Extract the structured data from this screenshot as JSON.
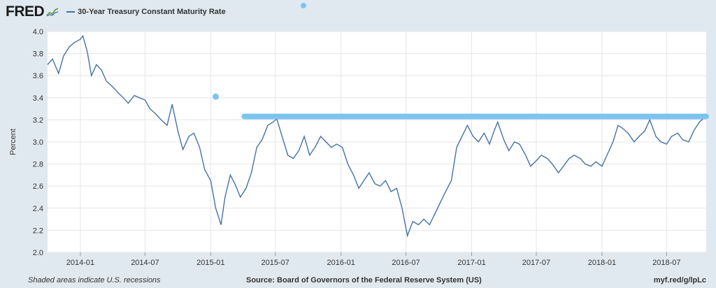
{
  "header": {
    "logo_text": "FRED",
    "logo_icon": "trend-line-icon",
    "legend_label": "30-Year Treasury Constant Maturity Rate"
  },
  "footer": {
    "recessions_note": "Shaded areas indicate U.S. recessions",
    "source": "Source: Board of Governors of the Federal Reserve System (US)",
    "link": "myf.red/g/lpLc"
  },
  "colors": {
    "series": "#4572a7",
    "annotation": "#7cc4f0",
    "background": "#e1e9f0",
    "plot": "#ffffff"
  },
  "chart_data": {
    "type": "line",
    "title": "",
    "ylabel": "Percent",
    "xlabel": "",
    "ylim": [
      2.0,
      4.0
    ],
    "yticks": [
      "2.0",
      "2.2",
      "2.4",
      "2.6",
      "2.8",
      "3.0",
      "3.2",
      "3.4",
      "3.6",
      "3.8",
      "4.0"
    ],
    "xlim": [
      "2013-10-01",
      "2018-10-20"
    ],
    "xticks": [
      {
        "date": "2014-01-01",
        "label": "2014-01"
      },
      {
        "date": "2014-07-01",
        "label": "2014-07"
      },
      {
        "date": "2015-01-01",
        "label": "2015-01"
      },
      {
        "date": "2015-07-01",
        "label": "2015-07"
      },
      {
        "date": "2016-01-01",
        "label": "2016-01"
      },
      {
        "date": "2016-07-01",
        "label": "2016-07"
      },
      {
        "date": "2017-01-01",
        "label": "2017-01"
      },
      {
        "date": "2017-07-01",
        "label": "2017-07"
      },
      {
        "date": "2018-01-01",
        "label": "2018-01"
      },
      {
        "date": "2018-07-01",
        "label": "2018-07"
      }
    ],
    "grid": true,
    "series": [
      {
        "name": "30-Year Treasury Constant Maturity Rate",
        "points": [
          [
            "2013-10-01",
            3.7
          ],
          [
            "2013-10-15",
            3.75
          ],
          [
            "2013-11-01",
            3.62
          ],
          [
            "2013-11-15",
            3.78
          ],
          [
            "2013-12-01",
            3.86
          ],
          [
            "2013-12-15",
            3.9
          ],
          [
            "2014-01-01",
            3.93
          ],
          [
            "2014-01-08",
            3.96
          ],
          [
            "2014-01-20",
            3.82
          ],
          [
            "2014-02-01",
            3.6
          ],
          [
            "2014-02-15",
            3.7
          ],
          [
            "2014-03-01",
            3.65
          ],
          [
            "2014-03-15",
            3.55
          ],
          [
            "2014-04-01",
            3.5
          ],
          [
            "2014-04-15",
            3.45
          ],
          [
            "2014-05-01",
            3.4
          ],
          [
            "2014-05-15",
            3.35
          ],
          [
            "2014-06-01",
            3.42
          ],
          [
            "2014-06-15",
            3.4
          ],
          [
            "2014-07-01",
            3.38
          ],
          [
            "2014-07-15",
            3.3
          ],
          [
            "2014-08-01",
            3.25
          ],
          [
            "2014-08-15",
            3.2
          ],
          [
            "2014-09-01",
            3.15
          ],
          [
            "2014-09-15",
            3.34
          ],
          [
            "2014-10-01",
            3.1
          ],
          [
            "2014-10-15",
            2.93
          ],
          [
            "2014-11-01",
            3.05
          ],
          [
            "2014-11-15",
            3.08
          ],
          [
            "2014-12-01",
            2.95
          ],
          [
            "2014-12-15",
            2.75
          ],
          [
            "2015-01-01",
            2.65
          ],
          [
            "2015-01-15",
            2.4
          ],
          [
            "2015-01-30",
            2.25
          ],
          [
            "2015-02-10",
            2.5
          ],
          [
            "2015-02-25",
            2.7
          ],
          [
            "2015-03-10",
            2.62
          ],
          [
            "2015-03-25",
            2.5
          ],
          [
            "2015-04-10",
            2.58
          ],
          [
            "2015-04-25",
            2.72
          ],
          [
            "2015-05-10",
            2.95
          ],
          [
            "2015-05-25",
            3.02
          ],
          [
            "2015-06-10",
            3.15
          ],
          [
            "2015-06-25",
            3.18
          ],
          [
            "2015-07-05",
            3.21
          ],
          [
            "2015-07-20",
            3.05
          ],
          [
            "2015-08-05",
            2.88
          ],
          [
            "2015-08-20",
            2.85
          ],
          [
            "2015-09-05",
            2.92
          ],
          [
            "2015-09-20",
            3.05
          ],
          [
            "2015-10-05",
            2.88
          ],
          [
            "2015-10-20",
            2.95
          ],
          [
            "2015-11-05",
            3.05
          ],
          [
            "2015-11-20",
            3.0
          ],
          [
            "2015-12-05",
            2.95
          ],
          [
            "2015-12-20",
            2.98
          ],
          [
            "2016-01-05",
            2.95
          ],
          [
            "2016-01-20",
            2.8
          ],
          [
            "2016-02-05",
            2.7
          ],
          [
            "2016-02-20",
            2.58
          ],
          [
            "2016-03-05",
            2.65
          ],
          [
            "2016-03-20",
            2.72
          ],
          [
            "2016-04-05",
            2.62
          ],
          [
            "2016-04-20",
            2.6
          ],
          [
            "2016-05-05",
            2.65
          ],
          [
            "2016-05-20",
            2.55
          ],
          [
            "2016-06-05",
            2.58
          ],
          [
            "2016-06-20",
            2.4
          ],
          [
            "2016-07-05",
            2.15
          ],
          [
            "2016-07-20",
            2.28
          ],
          [
            "2016-08-05",
            2.25
          ],
          [
            "2016-08-20",
            2.3
          ],
          [
            "2016-09-05",
            2.25
          ],
          [
            "2016-09-20",
            2.35
          ],
          [
            "2016-10-05",
            2.45
          ],
          [
            "2016-10-20",
            2.55
          ],
          [
            "2016-11-05",
            2.65
          ],
          [
            "2016-11-20",
            2.95
          ],
          [
            "2016-12-05",
            3.05
          ],
          [
            "2016-12-20",
            3.15
          ],
          [
            "2017-01-05",
            3.05
          ],
          [
            "2017-01-20",
            3.0
          ],
          [
            "2017-02-05",
            3.08
          ],
          [
            "2017-02-20",
            2.98
          ],
          [
            "2017-03-05",
            3.1
          ],
          [
            "2017-03-15",
            3.18
          ],
          [
            "2017-04-01",
            3.02
          ],
          [
            "2017-04-15",
            2.92
          ],
          [
            "2017-05-01",
            3.0
          ],
          [
            "2017-05-15",
            2.98
          ],
          [
            "2017-06-01",
            2.88
          ],
          [
            "2017-06-15",
            2.78
          ],
          [
            "2017-07-01",
            2.83
          ],
          [
            "2017-07-15",
            2.88
          ],
          [
            "2017-08-01",
            2.85
          ],
          [
            "2017-08-15",
            2.8
          ],
          [
            "2017-09-01",
            2.72
          ],
          [
            "2017-09-15",
            2.78
          ],
          [
            "2017-10-01",
            2.85
          ],
          [
            "2017-10-15",
            2.88
          ],
          [
            "2017-11-01",
            2.85
          ],
          [
            "2017-11-15",
            2.8
          ],
          [
            "2017-12-01",
            2.78
          ],
          [
            "2017-12-15",
            2.82
          ],
          [
            "2018-01-01",
            2.78
          ],
          [
            "2018-01-15",
            2.88
          ],
          [
            "2018-02-01",
            3.0
          ],
          [
            "2018-02-15",
            3.15
          ],
          [
            "2018-03-01",
            3.12
          ],
          [
            "2018-03-15",
            3.08
          ],
          [
            "2018-04-01",
            3.0
          ],
          [
            "2018-04-15",
            3.05
          ],
          [
            "2018-05-01",
            3.1
          ],
          [
            "2018-05-15",
            3.2
          ],
          [
            "2018-06-01",
            3.05
          ],
          [
            "2018-06-15",
            3.0
          ],
          [
            "2018-07-01",
            2.98
          ],
          [
            "2018-07-15",
            3.05
          ],
          [
            "2018-08-01",
            3.08
          ],
          [
            "2018-08-15",
            3.02
          ],
          [
            "2018-09-01",
            3.0
          ],
          [
            "2018-09-15",
            3.1
          ],
          [
            "2018-10-01",
            3.18
          ],
          [
            "2018-10-15",
            3.22
          ]
        ]
      }
    ],
    "annotations": [
      {
        "type": "horizontal-line",
        "y": 3.23,
        "x_start": "2015-04-05",
        "x_end": "2018-10-20"
      },
      {
        "type": "dot",
        "x": "2015-01-15",
        "y": 3.41
      }
    ]
  }
}
